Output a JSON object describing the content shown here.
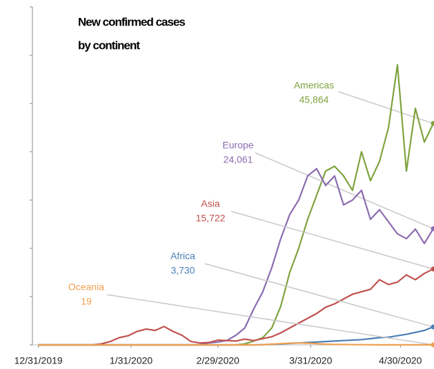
{
  "chart_data": {
    "type": "line",
    "title": [
      "New confirmed cases",
      "by continent"
    ],
    "x": [
      "2019-12-31",
      "2020-01-03",
      "2020-01-06",
      "2020-01-09",
      "2020-01-12",
      "2020-01-15",
      "2020-01-18",
      "2020-01-21",
      "2020-01-24",
      "2020-01-27",
      "2020-01-30",
      "2020-02-02",
      "2020-02-05",
      "2020-02-08",
      "2020-02-11",
      "2020-02-14",
      "2020-02-17",
      "2020-02-20",
      "2020-02-23",
      "2020-02-26",
      "2020-02-29",
      "2020-03-03",
      "2020-03-06",
      "2020-03-09",
      "2020-03-12",
      "2020-03-15",
      "2020-03-18",
      "2020-03-21",
      "2020-03-24",
      "2020-03-27",
      "2020-03-30",
      "2020-04-02",
      "2020-04-05",
      "2020-04-08",
      "2020-04-11",
      "2020-04-14",
      "2020-04-17",
      "2020-04-20",
      "2020-04-23",
      "2020-04-26",
      "2020-04-29",
      "2020-05-02",
      "2020-05-05",
      "2020-05-08",
      "2020-05-11"
    ],
    "series": [
      {
        "name": "Americas",
        "end_label": "45,864",
        "color": "#7ea33f",
        "values": [
          0,
          0,
          0,
          0,
          0,
          0,
          0,
          0,
          0,
          0,
          0,
          0,
          0,
          0,
          0,
          0,
          0,
          0,
          0,
          0,
          0,
          0,
          0,
          200,
          800,
          1500,
          3500,
          8000,
          15000,
          20000,
          26000,
          31000,
          36000,
          37000,
          35000,
          32000,
          40000,
          34000,
          38000,
          45000,
          58000,
          36000,
          49000,
          42000,
          45864
        ]
      },
      {
        "name": "Europe",
        "end_label": "24,061",
        "color": "#8b6bb0",
        "values": [
          0,
          0,
          0,
          0,
          0,
          0,
          0,
          0,
          0,
          0,
          0,
          0,
          0,
          0,
          0,
          0,
          0,
          0,
          50,
          400,
          600,
          900,
          2000,
          3500,
          7500,
          11000,
          16000,
          22000,
          27000,
          30000,
          35000,
          36500,
          33000,
          35000,
          29000,
          30000,
          32000,
          26000,
          28000,
          25500,
          23000,
          22000,
          24000,
          21000,
          24061
        ]
      },
      {
        "name": "Asia",
        "end_label": "15,722",
        "color": "#c0504d",
        "values": [
          0,
          0,
          0,
          0,
          0,
          0,
          10,
          200,
          700,
          1500,
          1900,
          2800,
          3300,
          3000,
          3800,
          2800,
          2000,
          700,
          400,
          500,
          1000,
          900,
          800,
          1200,
          900,
          1300,
          1700,
          2500,
          3500,
          4500,
          5500,
          6500,
          7800,
          8500,
          9500,
          10500,
          11000,
          11500,
          13500,
          12500,
          13000,
          14500,
          13500,
          14800,
          15722
        ]
      },
      {
        "name": "Africa",
        "end_label": "3,730",
        "color": "#4a7eb5",
        "values": [
          0,
          0,
          0,
          0,
          0,
          0,
          0,
          0,
          0,
          0,
          0,
          0,
          0,
          0,
          0,
          0,
          0,
          0,
          0,
          0,
          0,
          0,
          0,
          0,
          0,
          50,
          100,
          200,
          300,
          400,
          500,
          600,
          700,
          800,
          900,
          1000,
          1100,
          1300,
          1500,
          1600,
          1900,
          2200,
          2600,
          3000,
          3730
        ]
      },
      {
        "name": "Oceania",
        "end_label": "19",
        "color": "#f0a050",
        "values": [
          0,
          0,
          0,
          0,
          0,
          0,
          0,
          0,
          0,
          0,
          0,
          0,
          0,
          0,
          0,
          0,
          0,
          0,
          0,
          0,
          0,
          0,
          0,
          0,
          0,
          50,
          150,
          250,
          350,
          400,
          350,
          250,
          150,
          100,
          80,
          60,
          40,
          30,
          20,
          20,
          15,
          20,
          15,
          20,
          19
        ]
      }
    ],
    "xlim": [
      "2019-12-29",
      "2020-05-11"
    ],
    "xticks": [
      {
        "value": "2019-12-31",
        "label": "12/31/2019"
      },
      {
        "value": "2020-01-31",
        "label": "1/31/2020"
      },
      {
        "value": "2020-02-29",
        "label": "2/29/2020"
      },
      {
        "value": "2020-03-31",
        "label": "3/31/2020"
      },
      {
        "value": "2020-04-30",
        "label": "4/30/2020"
      }
    ],
    "ylim": [
      0,
      70000
    ],
    "yticks": [
      0,
      10000,
      20000,
      30000,
      40000,
      50000,
      60000,
      70000
    ]
  }
}
